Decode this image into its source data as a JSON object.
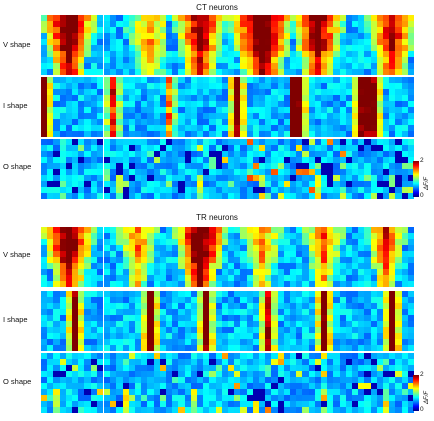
{
  "sections": [
    {
      "title": "CT neurons",
      "rows": [
        {
          "label": "V shape",
          "style": "v",
          "panels": [
            {
              "band": 4,
              "bw": 2,
              "level": 1.9
            },
            {
              "band": 7,
              "bw": 2,
              "level": 0.9
            },
            {
              "band": 5,
              "bw": 2,
              "level": 1.6
            },
            {
              "band": 5,
              "bw": 3,
              "level": 2.0
            },
            {
              "band": 4,
              "bw": 2,
              "level": 1.7
            },
            {
              "band": 6,
              "bw": 2,
              "level": 1.5
            }
          ]
        },
        {
          "label": "I shape",
          "style": "i",
          "panels": [
            {
              "band": 0,
              "bw": 1,
              "level": 1.9
            },
            {
              "band": 1,
              "bw": 1,
              "level": 1.3
            },
            {
              "band": 0,
              "bw": 1,
              "level": 1.1
            },
            {
              "band": 1,
              "bw": 1,
              "level": 1.8
            },
            {
              "band": 0,
              "bw": 2,
              "level": 1.9
            },
            {
              "band": 2,
              "bw": 2,
              "level": 1.7
            }
          ]
        },
        {
          "label": "O shape",
          "style": "o",
          "panels": [
            {
              "band": 3,
              "bw": 1,
              "level": 0.4
            },
            {
              "band": 2,
              "bw": 1,
              "level": 0.7
            },
            {
              "band": 5,
              "bw": 1,
              "level": 0.9
            },
            {
              "band": 5,
              "bw": 1,
              "level": 1.1
            },
            {
              "band": 4,
              "bw": 1,
              "level": 1.2
            },
            {
              "band": 6,
              "bw": 1,
              "level": 1.0
            }
          ]
        }
      ]
    },
    {
      "title": "TR neurons",
      "rows": [
        {
          "label": "V shape",
          "style": "v",
          "panels": [
            {
              "band": 4,
              "bw": 2,
              "level": 1.8
            },
            {
              "band": 5,
              "bw": 1,
              "level": 1.0
            },
            {
              "band": 5,
              "bw": 2,
              "level": 1.9
            },
            {
              "band": 5,
              "bw": 1,
              "level": 1.0
            },
            {
              "band": 5,
              "bw": 1,
              "level": 1.1
            },
            {
              "band": 5,
              "bw": 1,
              "level": 1.3
            }
          ]
        },
        {
          "label": "I shape",
          "style": "i",
          "panels": [
            {
              "band": 5,
              "bw": 1,
              "level": 1.8
            },
            {
              "band": 7,
              "bw": 1,
              "level": 1.8
            },
            {
              "band": 6,
              "bw": 1,
              "level": 1.8
            },
            {
              "band": 6,
              "bw": 1,
              "level": 1.6
            },
            {
              "band": 5,
              "bw": 1,
              "level": 1.9
            },
            {
              "band": 6,
              "bw": 1,
              "level": 1.9
            }
          ]
        },
        {
          "label": "O shape",
          "style": "o",
          "panels": [
            {
              "band": 2,
              "bw": 1,
              "level": 0.9
            },
            {
              "band": 3,
              "bw": 1,
              "level": 1.2
            },
            {
              "band": 4,
              "bw": 1,
              "level": 0.9
            },
            {
              "band": 4,
              "bw": 1,
              "level": 1.1
            },
            {
              "band": 5,
              "bw": 1,
              "level": 1.0
            },
            {
              "band": 5,
              "bw": 1,
              "level": 0.9
            }
          ]
        }
      ]
    }
  ],
  "colorbar": {
    "max_label": "2",
    "min_label": "0",
    "axis_label": "ΔF/F",
    "colors": [
      "#00007f",
      "#0000ff",
      "#007fff",
      "#00ffff",
      "#7fff7f",
      "#ffff00",
      "#ff7f00",
      "#ff0000",
      "#7f0000"
    ]
  }
}
